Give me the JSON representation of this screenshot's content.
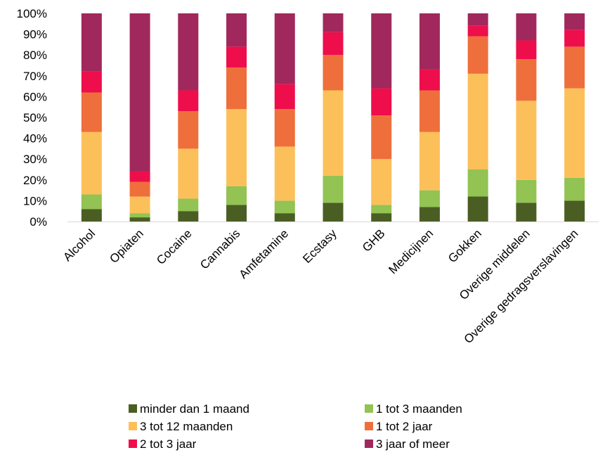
{
  "chart_data": {
    "type": "bar",
    "stacked": true,
    "percent_stacked": true,
    "title": "",
    "xlabel": "",
    "ylabel": "",
    "ylim": [
      0,
      100
    ],
    "yticks": [
      "0%",
      "10%",
      "20%",
      "30%",
      "40%",
      "50%",
      "60%",
      "70%",
      "80%",
      "90%",
      "100%"
    ],
    "grid": false,
    "legend_position": "bottom",
    "categories": [
      "Alcohol",
      "Opiaten",
      "Cocaine",
      "Cannabis",
      "Amfetamine",
      "Ecstasy",
      "GHB",
      "Medicijnen",
      "Gokken",
      "Overige middelen",
      "Overige gedragsverslavingen"
    ],
    "series": [
      {
        "name": "minder dan 1 maand",
        "color": "#4a5e23",
        "values": [
          6,
          2,
          5,
          8,
          4,
          9,
          4,
          7,
          12,
          9,
          10
        ]
      },
      {
        "name": "1 tot 3 maanden",
        "color": "#92c353",
        "values": [
          7,
          2,
          6,
          9,
          6,
          13,
          4,
          8,
          13,
          11,
          11
        ]
      },
      {
        "name": "3 tot 12 maanden",
        "color": "#fcc05a",
        "values": [
          30,
          8,
          24,
          37,
          26,
          41,
          22,
          28,
          46,
          38,
          43
        ]
      },
      {
        "name": "1 tot 2 jaar",
        "color": "#ee6f3c",
        "values": [
          19,
          7,
          18,
          20,
          18,
          17,
          21,
          20,
          18,
          20,
          20
        ]
      },
      {
        "name": "2 tot 3 jaar",
        "color": "#ee0e4c",
        "values": [
          10,
          5,
          10,
          10,
          12,
          11,
          13,
          10,
          5,
          9,
          8
        ]
      },
      {
        "name": "3 jaar of meer",
        "color": "#a1285c",
        "values": [
          28,
          76,
          37,
          16,
          34,
          9,
          36,
          27,
          6,
          13,
          8
        ]
      }
    ]
  }
}
